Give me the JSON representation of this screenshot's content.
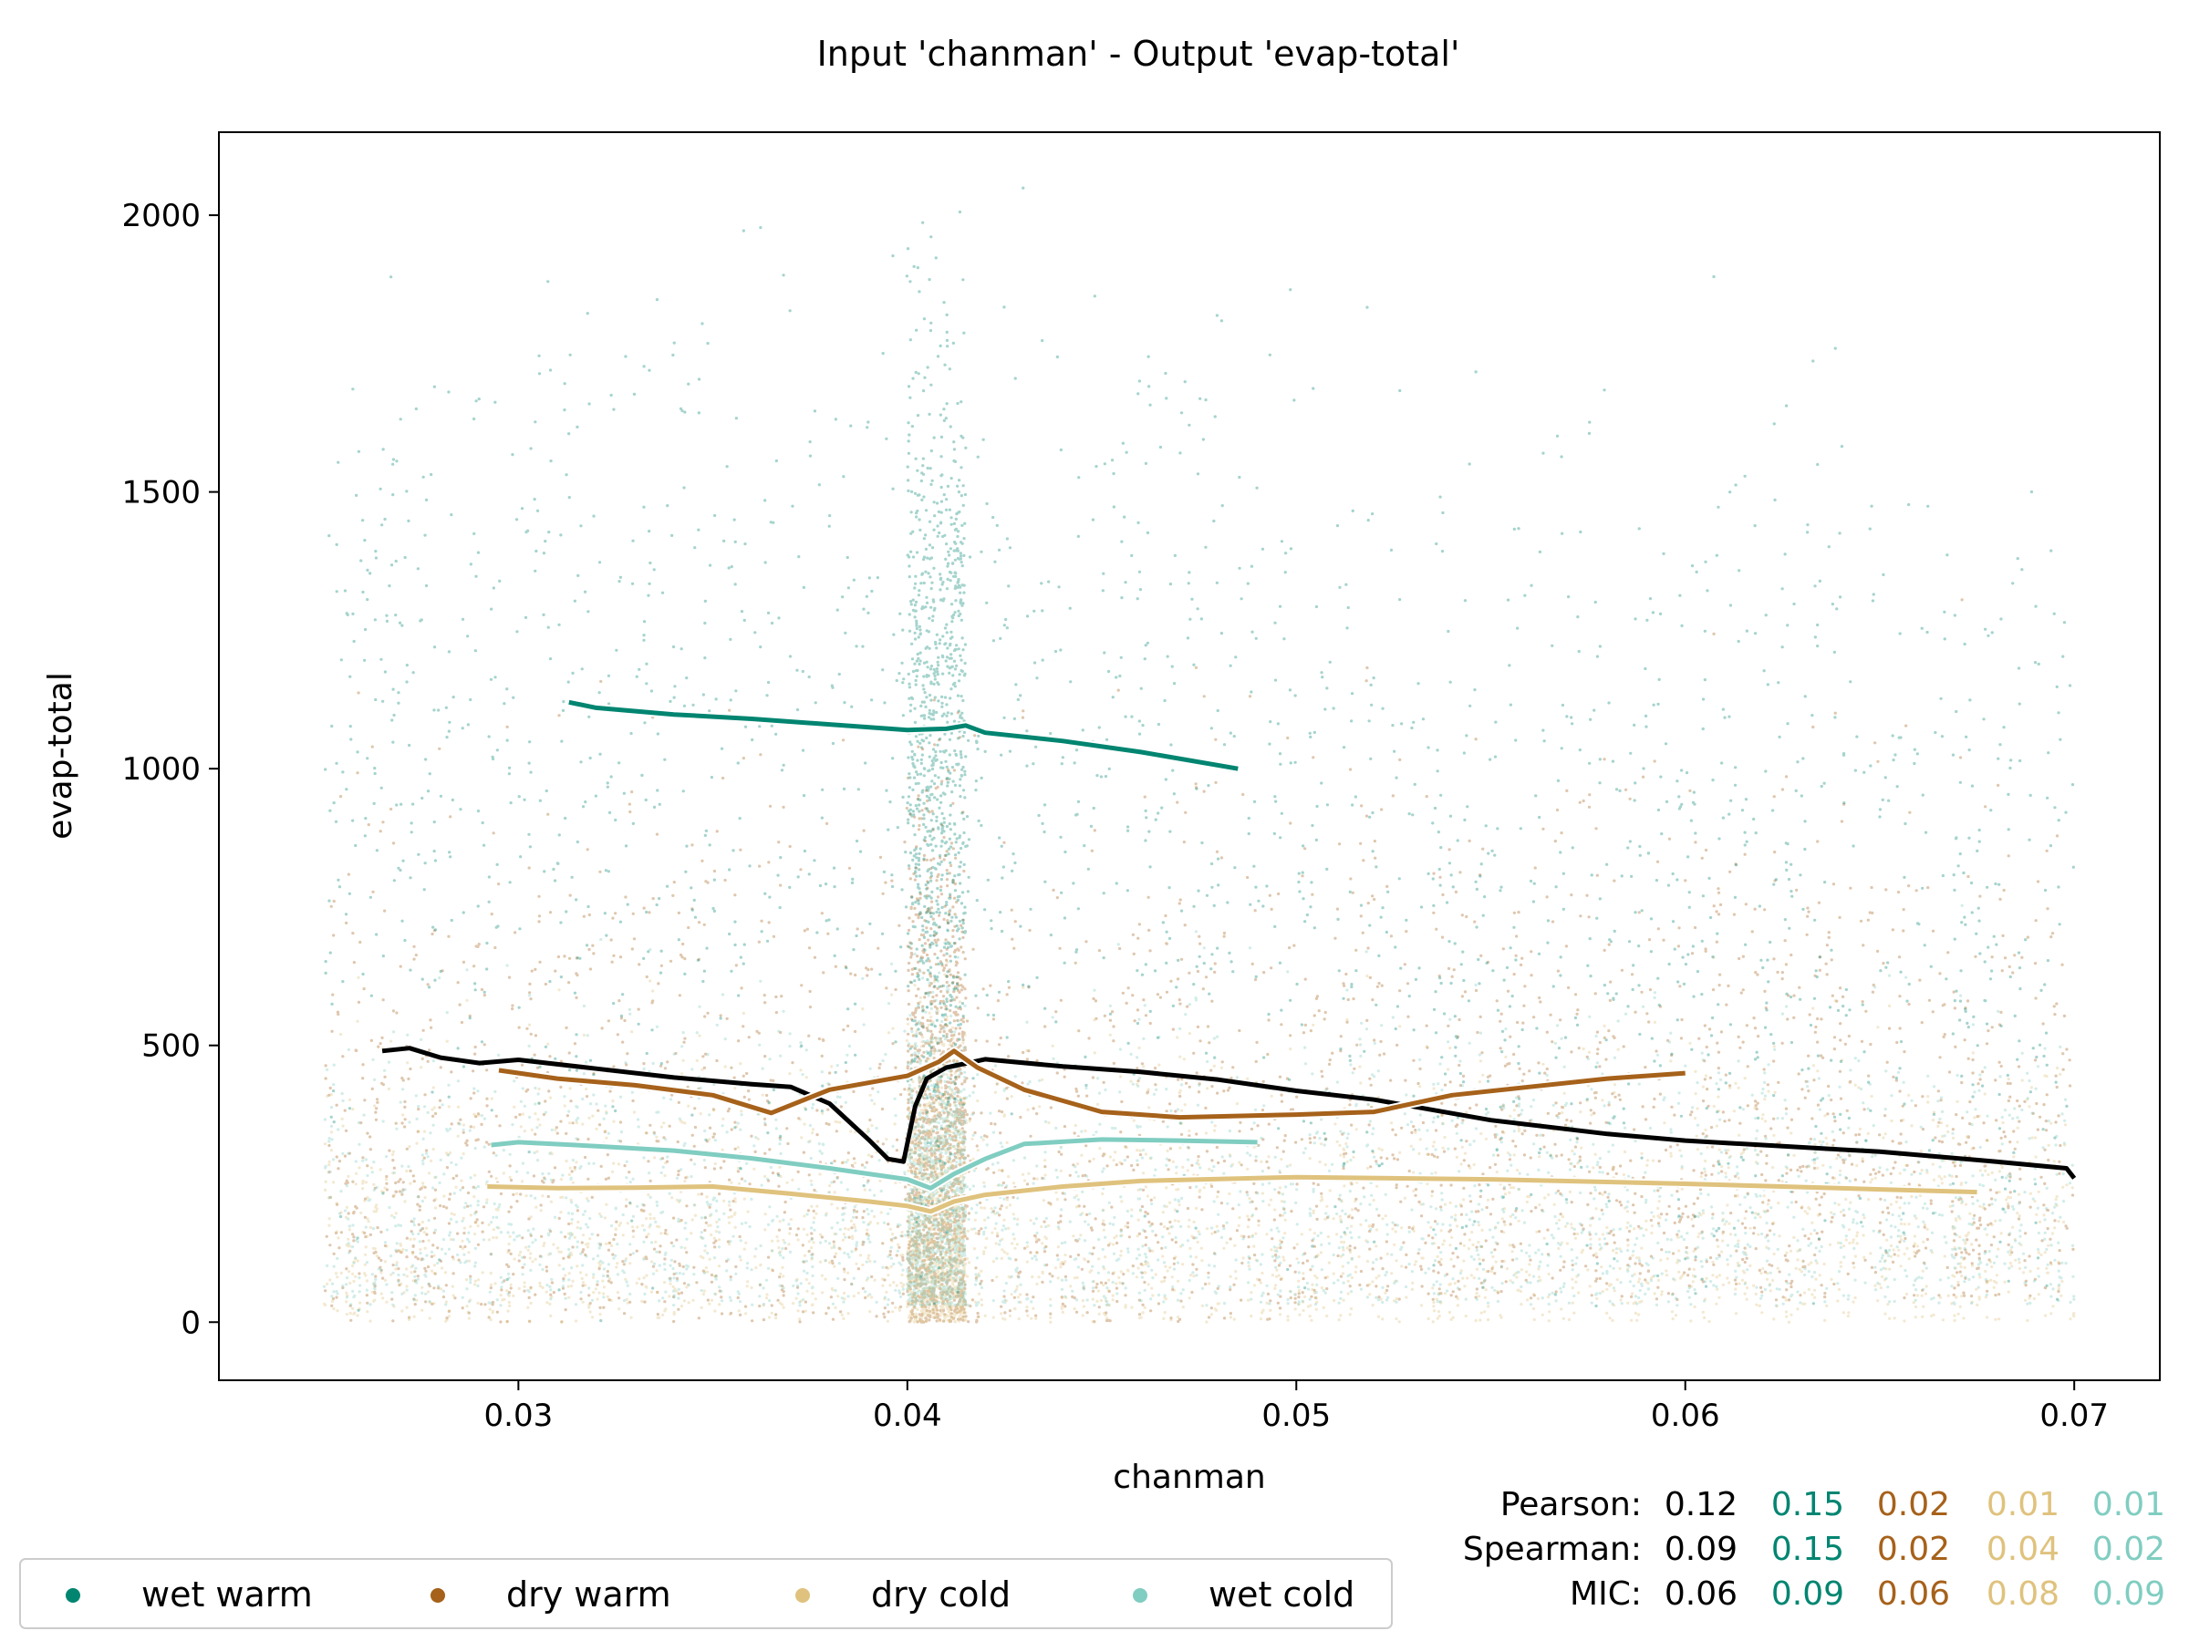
{
  "chart_data": {
    "type": "scatter",
    "title": "Input 'chanman' - Output 'evap-total'",
    "xlabel": "chanman",
    "ylabel": "evap-total",
    "xlim": [
      0.0223,
      0.0722
    ],
    "ylim": [
      -105,
      2150
    ],
    "xticks": [
      {
        "value": 0.03,
        "label": "0.03"
      },
      {
        "value": 0.04,
        "label": "0.04"
      },
      {
        "value": 0.05,
        "label": "0.05"
      },
      {
        "value": 0.06,
        "label": "0.06"
      },
      {
        "value": 0.07,
        "label": "0.07"
      }
    ],
    "yticks": [
      {
        "value": 0,
        "label": "0"
      },
      {
        "value": 500,
        "label": "500"
      },
      {
        "value": 1000,
        "label": "1000"
      },
      {
        "value": 1500,
        "label": "1500"
      },
      {
        "value": 2000,
        "label": "2000"
      }
    ],
    "grid": false,
    "series": [
      {
        "name": "wet warm",
        "color": "#018571"
      },
      {
        "name": "dry warm",
        "color": "#a6611a"
      },
      {
        "name": "dry cold",
        "color": "#dfc27d"
      },
      {
        "name": "wet cold",
        "color": "#80cdc1"
      }
    ],
    "trend_lines": [
      {
        "series": "all",
        "color": "#000000",
        "x": [
          0.0265,
          0.0272,
          0.028,
          0.029,
          0.03,
          0.032,
          0.034,
          0.036,
          0.037,
          0.038,
          0.039,
          0.0395,
          0.0399,
          0.0402,
          0.0405,
          0.041,
          0.042,
          0.044,
          0.046,
          0.048,
          0.05,
          0.052,
          0.055,
          0.058,
          0.06,
          0.062,
          0.065,
          0.068,
          0.0698,
          0.07
        ],
        "y": [
          490,
          495,
          478,
          468,
          474,
          458,
          442,
          430,
          425,
          395,
          330,
          295,
          290,
          390,
          440,
          460,
          475,
          462,
          452,
          438,
          418,
          402,
          365,
          340,
          328,
          320,
          308,
          290,
          278,
          260
        ]
      },
      {
        "series": "wet warm",
        "color": "#018571",
        "x": [
          0.0313,
          0.032,
          0.034,
          0.036,
          0.038,
          0.04,
          0.041,
          0.0415,
          0.042,
          0.044,
          0.046,
          0.0485
        ],
        "y": [
          1120,
          1110,
          1098,
          1090,
          1080,
          1070,
          1072,
          1078,
          1065,
          1050,
          1030,
          1000
        ]
      },
      {
        "series": "dry warm",
        "color": "#a6611a",
        "x": [
          0.0295,
          0.031,
          0.033,
          0.035,
          0.0365,
          0.038,
          0.04,
          0.0408,
          0.0412,
          0.0418,
          0.043,
          0.045,
          0.047,
          0.05,
          0.052,
          0.054,
          0.056,
          0.058,
          0.06
        ],
        "y": [
          455,
          440,
          428,
          410,
          378,
          420,
          445,
          470,
          490,
          460,
          420,
          380,
          370,
          375,
          380,
          410,
          425,
          440,
          450
        ]
      },
      {
        "series": "wet cold",
        "color": "#80cdc1",
        "x": [
          0.0293,
          0.03,
          0.032,
          0.034,
          0.036,
          0.038,
          0.04,
          0.0406,
          0.0412,
          0.042,
          0.043,
          0.045,
          0.047,
          0.049
        ],
        "y": [
          320,
          325,
          318,
          310,
          296,
          278,
          258,
          242,
          268,
          295,
          322,
          330,
          328,
          325
        ]
      },
      {
        "series": "dry cold",
        "color": "#dfc27d",
        "x": [
          0.0292,
          0.031,
          0.033,
          0.035,
          0.037,
          0.039,
          0.04,
          0.0406,
          0.0412,
          0.042,
          0.044,
          0.046,
          0.05,
          0.055,
          0.06,
          0.065,
          0.0675
        ],
        "y": [
          245,
          242,
          243,
          245,
          232,
          218,
          210,
          200,
          218,
          230,
          245,
          255,
          262,
          258,
          250,
          240,
          235
        ]
      }
    ],
    "stats": {
      "colors": [
        "#000000",
        "#018571",
        "#a6611a",
        "#dfc27d",
        "#80cdc1"
      ],
      "rows": [
        {
          "label": "Pearson:",
          "values": [
            "0.12",
            "0.15",
            "0.02",
            "0.01",
            "0.01"
          ]
        },
        {
          "label": "Spearman:",
          "values": [
            "0.09",
            "0.15",
            "0.02",
            "0.04",
            "0.02"
          ]
        },
        {
          "label": "MIC:",
          "values": [
            "0.06",
            "0.09",
            "0.06",
            "0.08",
            "0.09"
          ]
        }
      ]
    }
  }
}
